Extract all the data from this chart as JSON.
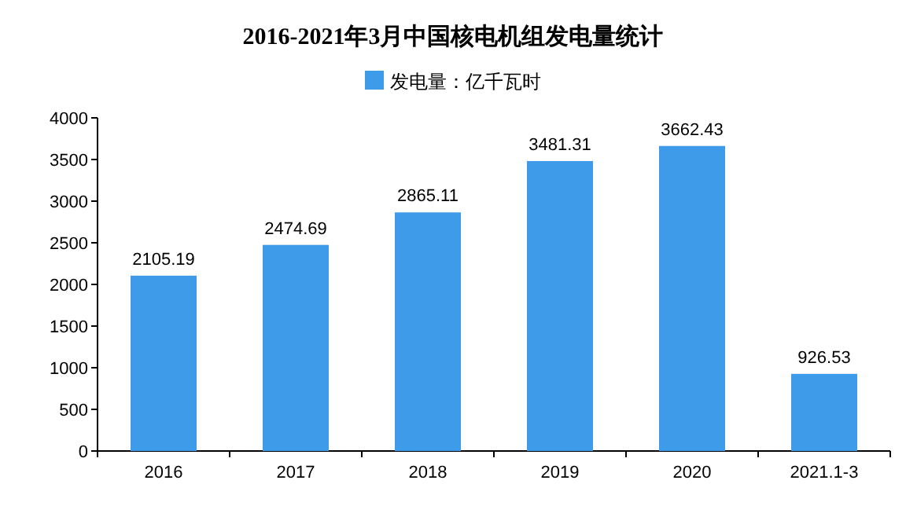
{
  "chart_data": {
    "type": "bar",
    "title": "2016-2021年3月中国核电机组发电量统计",
    "categories": [
      "2016",
      "2017",
      "2018",
      "2019",
      "2020",
      "2021.1-3"
    ],
    "series": [
      {
        "name": "发电量：亿千瓦时",
        "color": "#3d9bea",
        "values": [
          2105.19,
          2474.69,
          2865.11,
          3481.31,
          3662.43,
          926.53
        ]
      }
    ],
    "ylim": [
      0,
      4000
    ],
    "yticks": [
      0,
      500,
      1000,
      1500,
      2000,
      2500,
      3000,
      3500,
      4000
    ],
    "data_labels": true,
    "legend": "top left",
    "grid": false
  }
}
